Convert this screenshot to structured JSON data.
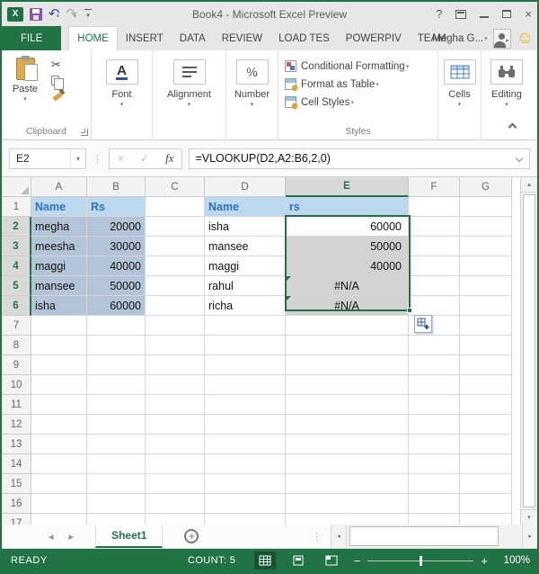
{
  "window": {
    "title": "Book4 - Microsoft Excel Preview"
  },
  "icons": {
    "dropdown": "▾",
    "up": "▴",
    "down": "▾",
    "left": "◂",
    "right": "▸",
    "dots": "⋮",
    "scissors": "✂",
    "check": "✓",
    "cancel": "×",
    "smiley": "☺",
    "help": "?",
    "undo": "↶",
    "redo": "↷",
    "plus": "+"
  },
  "tabs": {
    "file": "FILE",
    "items": [
      "HOME",
      "INSERT",
      "DATA",
      "REVIEW",
      "LOAD TES",
      "POWERPIV",
      "TEAM"
    ],
    "active": "HOME",
    "user": "Megha G..."
  },
  "ribbon": {
    "clipboard": {
      "paste_label": "Paste",
      "group_label": "Clipboard"
    },
    "font": {
      "icon_letter": "A",
      "group_label": "Font"
    },
    "alignment": {
      "group_label": "Alignment"
    },
    "number": {
      "icon_text": "%",
      "group_label": "Number"
    },
    "styles": {
      "buttons": [
        "Conditional Formatting",
        "Format as Table",
        "Cell Styles"
      ],
      "group_label": "Styles"
    },
    "cells": {
      "group_label": "Cells"
    },
    "editing": {
      "group_label": "Editing"
    }
  },
  "formula_bar": {
    "name_box": "E2",
    "fx_label": "fx",
    "formula": "=VLOOKUP(D2,A2:B6,2,0)"
  },
  "grid": {
    "column_letters": [
      "A",
      "B",
      "C",
      "D",
      "E",
      "F",
      "G"
    ],
    "active_column": "E",
    "row_count": 18,
    "selected_rows": [
      2,
      3,
      4,
      5,
      6
    ],
    "error_value": "#N/A",
    "left_table": {
      "headers": [
        "Name",
        "Rs"
      ],
      "rows": [
        [
          "megha",
          "20000"
        ],
        [
          "meesha",
          "30000"
        ],
        [
          "maggi",
          "40000"
        ],
        [
          "mansee",
          "50000"
        ],
        [
          "isha",
          "60000"
        ]
      ]
    },
    "right_table": {
      "headers": [
        "Name",
        "rs"
      ],
      "rows": [
        [
          "isha",
          "60000"
        ],
        [
          "mansee",
          "50000"
        ],
        [
          "maggi",
          "40000"
        ],
        [
          "rahul",
          "#N/A"
        ],
        [
          "richa",
          "#N/A"
        ]
      ]
    }
  },
  "sheet_bar": {
    "sheet_name": "Sheet1",
    "add_label": "+"
  },
  "status_bar": {
    "mode": "READY",
    "count": "COUNT: 5",
    "zoom_out": "−",
    "zoom_in": "+",
    "zoom_level": "100%"
  },
  "colors": {
    "excel_green": "#217346",
    "header_fill_blue": "#bdd7ee",
    "header_text_blue": "#2e74b5",
    "range_fill_blue": "#b4c4d8",
    "selection_gray": "#d2d2d2",
    "save_icon_purple": "#8a56ac",
    "smiley_yellow": "#f2b600"
  }
}
